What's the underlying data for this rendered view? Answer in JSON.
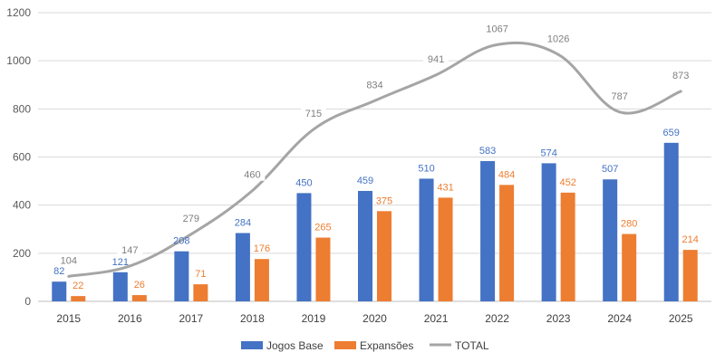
{
  "chart_data": {
    "type": "bar",
    "categories": [
      "2015",
      "2016",
      "2017",
      "2018",
      "2019",
      "2020",
      "2021",
      "2022",
      "2023",
      "2024",
      "2025"
    ],
    "series": [
      {
        "name": "Jogos Base",
        "kind": "bar",
        "color": "#4472c4",
        "values": [
          82,
          121,
          208,
          284,
          450,
          459,
          510,
          583,
          574,
          507,
          659
        ]
      },
      {
        "name": "Expansões",
        "kind": "bar",
        "color": "#ed7d31",
        "values": [
          22,
          26,
          71,
          176,
          265,
          375,
          431,
          484,
          452,
          280,
          214
        ]
      },
      {
        "name": "TOTAL",
        "kind": "line",
        "color": "#a5a5a5",
        "values": [
          104,
          147,
          279,
          460,
          715,
          834,
          941,
          1067,
          1026,
          787,
          873
        ]
      }
    ],
    "y_ticks": [
      "0",
      "200",
      "400",
      "600",
      "800",
      "1000",
      "1200"
    ],
    "ylim": [
      0,
      1200
    ],
    "grid": true,
    "legend_position": "bottom-center",
    "title": "",
    "xlabel": "",
    "ylabel": ""
  }
}
